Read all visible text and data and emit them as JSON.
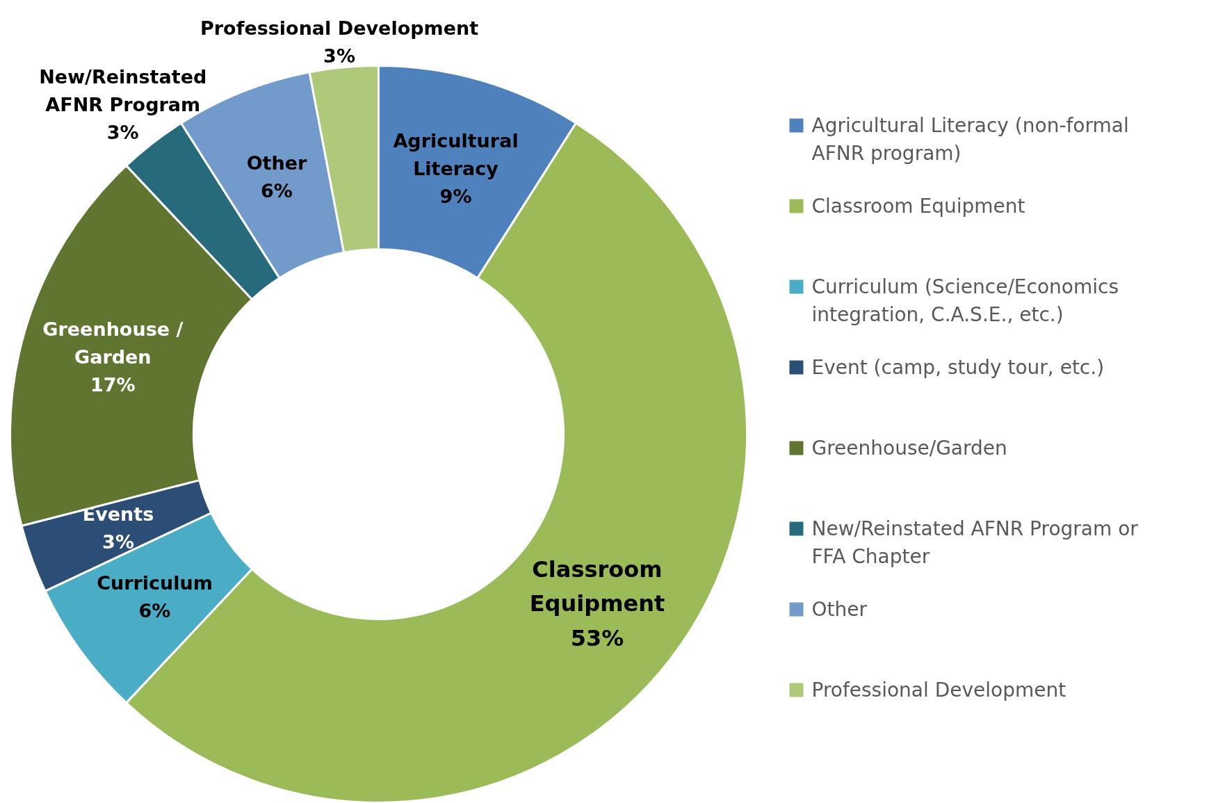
{
  "chart_data": {
    "type": "donut",
    "categories": [
      "Agricultural Literacy (non-formal AFNR program)",
      "Classroom Equipment",
      "Curriculum (Science/Economics integration, C.A.S.E., etc.)",
      "Event (camp, study tour, etc.)",
      "Greenhouse/Garden",
      "New/Reinstated AFNR Program or FFA Chapter",
      "Other",
      "Professional Development"
    ],
    "values": [
      9,
      53,
      6,
      3,
      17,
      3,
      6,
      3
    ],
    "colors": [
      "#4f81bd",
      "#9bbb59",
      "#4bacc6",
      "#2c4d75",
      "#5f7530",
      "#276a7c",
      "#729aca",
      "#afc97a"
    ],
    "value_labels": [
      "Agricultural\nLiteracy\n9%",
      "Classroom\nEquipment\n53%",
      "Curriculum\n6%",
      "Events\n3%",
      "Greenhouse /\nGarden\n17%",
      "New/Reinstated\nAFNR Program\n3%",
      "Other\n6%",
      "Professional Development\n3%"
    ],
    "legend": "right"
  }
}
